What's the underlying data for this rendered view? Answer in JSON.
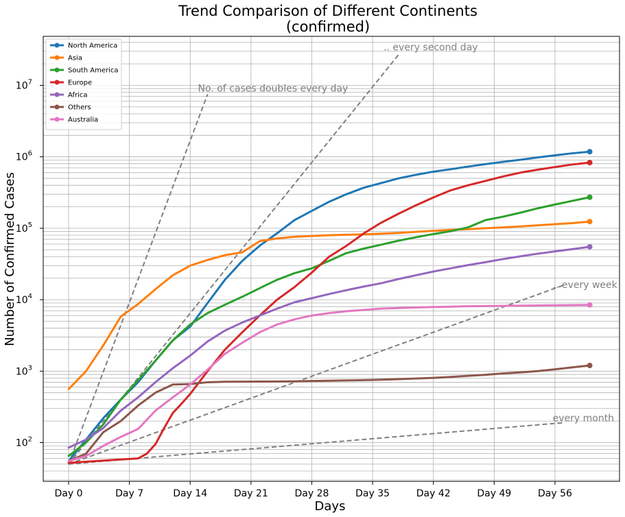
{
  "chart_data": {
    "type": "line",
    "title": "Trend Comparison of Different Continents",
    "subtitle": "(confirmed)",
    "xlabel": "Days",
    "ylabel": "Number of Confirmed Cases",
    "yscale": "log",
    "xlim": [
      -3,
      62
    ],
    "ylim": [
      25,
      500000000
    ],
    "xticks": [
      0,
      7,
      14,
      21,
      28,
      35,
      42,
      49,
      56
    ],
    "xtick_labels": [
      "Day 0",
      "Day 7",
      "Day 14",
      "Day 21",
      "Day 28",
      "Day 35",
      "Day 42",
      "Day 49",
      "Day 56"
    ],
    "ytick_values": [
      100,
      1000,
      10000,
      100000,
      1000000,
      10000000
    ],
    "ytick_labels": [
      {
        "base": "10",
        "exp": "2"
      },
      {
        "base": "10",
        "exp": "3"
      },
      {
        "base": "10",
        "exp": "4"
      },
      {
        "base": "10",
        "exp": "5"
      },
      {
        "base": "10",
        "exp": "6"
      },
      {
        "base": "10",
        "exp": "7"
      }
    ],
    "grid": true,
    "legend_position": "top-left",
    "series": [
      {
        "name": "North America",
        "color": "#1f77b4",
        "x": [
          0,
          2,
          4,
          6,
          8,
          10,
          12,
          14,
          16,
          18,
          20,
          22,
          24,
          26,
          28,
          30,
          32,
          34,
          36,
          38,
          40,
          42,
          44,
          46,
          48,
          50,
          52,
          54,
          56,
          58,
          60
        ],
        "y": [
          55,
          110,
          220,
          400,
          700,
          1400,
          2700,
          4200,
          9000,
          19000,
          35000,
          57000,
          85000,
          130000,
          175000,
          235000,
          300000,
          370000,
          430000,
          500000,
          560000,
          620000,
          670000,
          730000,
          790000,
          850000,
          910000,
          980000,
          1050000,
          1120000,
          1180000
        ]
      },
      {
        "name": "Asia",
        "color": "#ff7f0e",
        "x": [
          0,
          2,
          4,
          6,
          8,
          10,
          12,
          14,
          16,
          18,
          20,
          22,
          24,
          26,
          28,
          30,
          32,
          34,
          36,
          38,
          40,
          42,
          44,
          46,
          48,
          50,
          52,
          54,
          56,
          58,
          60
        ],
        "y": [
          560,
          1000,
          2300,
          5800,
          8700,
          14000,
          22000,
          30000,
          36000,
          42000,
          46000,
          66000,
          72000,
          76000,
          78000,
          80000,
          81000,
          82000,
          84000,
          86000,
          89000,
          92000,
          95000,
          97000,
          100000,
          103000,
          106000,
          110000,
          114000,
          118000,
          124000
        ]
      },
      {
        "name": "South America",
        "color": "#2ca02c",
        "x": [
          0,
          2,
          4,
          6,
          8,
          10,
          12,
          14,
          16,
          18,
          20,
          22,
          24,
          26,
          28,
          30,
          32,
          34,
          36,
          38,
          40,
          42,
          44,
          46,
          48,
          50,
          52,
          54,
          56,
          58,
          60
        ],
        "y": [
          65,
          100,
          180,
          400,
          750,
          1400,
          2700,
          4500,
          6500,
          8500,
          11000,
          14500,
          19000,
          23500,
          27500,
          35000,
          45000,
          52000,
          59000,
          67000,
          75000,
          83000,
          91000,
          103000,
          130000,
          145000,
          165000,
          190000,
          215000,
          242000,
          272000
        ]
      },
      {
        "name": "Europe",
        "color": "#d62728",
        "x": [
          0,
          2,
          4,
          6,
          8,
          9,
          10,
          11,
          12,
          13,
          14,
          16,
          18,
          20,
          22,
          24,
          26,
          28,
          30,
          32,
          34,
          36,
          38,
          40,
          42,
          44,
          46,
          48,
          50,
          52,
          54,
          56,
          58,
          60
        ],
        "y": [
          52,
          54,
          56,
          58,
          60,
          70,
          95,
          160,
          260,
          350,
          480,
          1000,
          2000,
          3500,
          6000,
          10000,
          15000,
          24000,
          40000,
          57000,
          85000,
          120000,
          160000,
          210000,
          270000,
          340000,
          400000,
          460000,
          530000,
          600000,
          660000,
          720000,
          780000,
          830000
        ]
      },
      {
        "name": "Africa",
        "color": "#9467bd",
        "x": [
          0,
          2,
          4,
          6,
          8,
          10,
          12,
          14,
          16,
          18,
          20,
          22,
          24,
          26,
          28,
          30,
          32,
          34,
          36,
          38,
          40,
          42,
          44,
          46,
          48,
          50,
          52,
          54,
          56,
          58,
          60
        ],
        "y": [
          85,
          110,
          160,
          280,
          430,
          700,
          1100,
          1650,
          2600,
          3700,
          4800,
          6000,
          7500,
          9200,
          10500,
          12000,
          13600,
          15300,
          17000,
          19500,
          22000,
          24800,
          27500,
          30500,
          33500,
          37000,
          40500,
          44000,
          47500,
          51000,
          55000
        ]
      },
      {
        "name": "Others",
        "color": "#8c564b",
        "x": [
          0,
          2,
          4,
          6,
          8,
          10,
          12,
          14,
          16,
          18,
          20,
          22,
          24,
          26,
          28,
          30,
          32,
          34,
          36,
          38,
          40,
          42,
          44,
          46,
          48,
          50,
          52,
          54,
          56,
          58,
          60
        ],
        "y": [
          55,
          70,
          140,
          200,
          330,
          500,
          650,
          660,
          700,
          710,
          712,
          714,
          716,
          720,
          728,
          735,
          742,
          750,
          760,
          773,
          790,
          805,
          830,
          860,
          890,
          930,
          960,
          1000,
          1060,
          1130,
          1200
        ]
      },
      {
        "name": "Australia",
        "color": "#e377c2",
        "x": [
          0,
          2,
          4,
          6,
          8,
          10,
          12,
          14,
          16,
          18,
          20,
          22,
          24,
          26,
          28,
          30,
          32,
          34,
          36,
          38,
          40,
          42,
          44,
          46,
          48,
          50,
          52,
          54,
          56,
          58,
          60
        ],
        "y": [
          55,
          65,
          90,
          120,
          155,
          280,
          430,
          650,
          1050,
          1750,
          2500,
          3500,
          4500,
          5300,
          6000,
          6500,
          6900,
          7200,
          7500,
          7650,
          7800,
          7900,
          8000,
          8100,
          8150,
          8200,
          8250,
          8300,
          8350,
          8400,
          8450
        ]
      }
    ],
    "reference_lines": [
      {
        "label": "No. of cases doubles every day",
        "x": [
          0,
          16
        ],
        "y": [
          50,
          7500000
        ],
        "color": "#7f7f7f",
        "dash": "dashed"
      },
      {
        "label": ".. every second day",
        "x": [
          0,
          38
        ],
        "y": [
          50,
          27000000
        ],
        "color": "#7f7f7f",
        "dash": "dashed"
      },
      {
        "label": ".. every week",
        "x": [
          0,
          57
        ],
        "y": [
          50,
          16000
        ],
        "color": "#7f7f7f",
        "dash": "dashed"
      },
      {
        "label": "every month",
        "x": [
          0,
          57
        ],
        "y": [
          50,
          190
        ],
        "color": "#7f7f7f",
        "dash": "dashed"
      }
    ]
  }
}
